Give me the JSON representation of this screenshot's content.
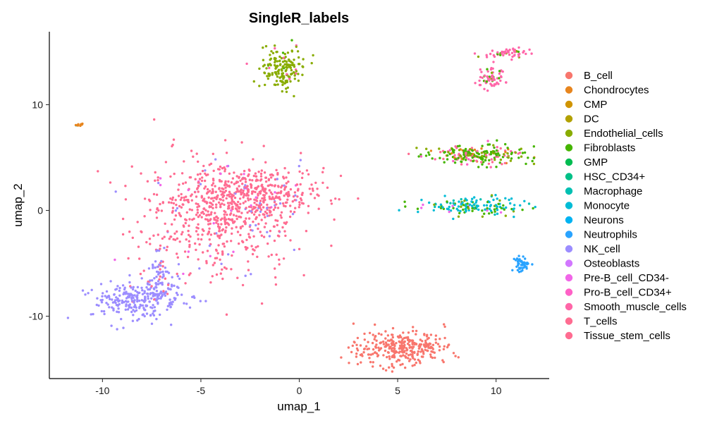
{
  "chart_data": {
    "type": "scatter",
    "title": "SingleR_labels",
    "xlabel": "umap_1",
    "ylabel": "umap_2",
    "xlim": [
      -12.7,
      12.7
    ],
    "ylim": [
      -15.9,
      16.9
    ],
    "xticks": [
      -10,
      -5,
      0,
      5,
      10
    ],
    "yticks": [
      -10,
      0,
      10
    ],
    "xtick_labels": [
      "-10",
      "-5",
      "0",
      "5",
      "10"
    ],
    "ytick_labels": [
      "-10",
      "0",
      "10"
    ],
    "legend_position": "right",
    "legend": [
      {
        "name": "B_cell",
        "color": "#F8766D"
      },
      {
        "name": "Chondrocytes",
        "color": "#E7851E"
      },
      {
        "name": "CMP",
        "color": "#D09400"
      },
      {
        "name": "DC",
        "color": "#B2A100"
      },
      {
        "name": "Endothelial_cells",
        "color": "#89AC00"
      },
      {
        "name": "Fibroblasts",
        "color": "#45B500"
      },
      {
        "name": "GMP",
        "color": "#00BC51"
      },
      {
        "name": "HSC_CD34+",
        "color": "#00C087"
      },
      {
        "name": "Macrophage",
        "color": "#00C0B2"
      },
      {
        "name": "Monocyte",
        "color": "#00BCD6"
      },
      {
        "name": "Neurons",
        "color": "#00B3F2"
      },
      {
        "name": "Neutrophils",
        "color": "#29A3FF"
      },
      {
        "name": "NK_cell",
        "color": "#9C8DFF"
      },
      {
        "name": "Osteoblasts",
        "color": "#D277FF"
      },
      {
        "name": "Pre-B_cell_CD34-",
        "color": "#F166E8"
      },
      {
        "name": "Pro-B_cell_CD34+",
        "color": "#FF61C7"
      },
      {
        "name": "Smooth_muscle_cells",
        "color": "#FF66A8"
      },
      {
        "name": "T_cells",
        "color": "#FF6C91"
      },
      {
        "name": "Tissue_stem_cells",
        "color": "#FF6C91"
      }
    ],
    "clusters": [
      {
        "label": "T_cells main cluster",
        "cx": -4.2,
        "cy": -1.0,
        "sx": 2.1,
        "sy": 3.2,
        "n": 900,
        "shape": "blob",
        "composition": {
          "T_cells": 0.93,
          "NK_cell": 0.05,
          "Pre-B_cell_CD34-": 0.02
        }
      },
      {
        "label": "NK cluster",
        "cx": -8.2,
        "cy": -8.5,
        "sx": 1.2,
        "sy": 0.9,
        "n": 260,
        "composition": {
          "NK_cell": 1.0
        }
      },
      {
        "label": "NK tail",
        "cx": -7.1,
        "cy": -6.3,
        "sx": 0.25,
        "sy": 1.3,
        "n": 60,
        "composition": {
          "NK_cell": 0.85,
          "T_cells": 0.15
        }
      },
      {
        "label": "B_cell cluster",
        "cx": 5.2,
        "cy": -13.0,
        "sx": 1.2,
        "sy": 0.8,
        "n": 320,
        "composition": {
          "B_cell": 1.0
        }
      },
      {
        "label": "Endothelial cluster",
        "cx": -0.9,
        "cy": 13.4,
        "sx": 0.55,
        "sy": 1.0,
        "n": 170,
        "composition": {
          "Endothelial_cells": 0.9,
          "Smooth_muscle_cells": 0.06,
          "Fibroblasts": 0.04
        }
      },
      {
        "label": "Fibroblast band",
        "cx": 9.0,
        "cy": 5.2,
        "sx": 1.4,
        "sy": 0.45,
        "n": 230,
        "composition": {
          "Fibroblasts": 0.5,
          "Endothelial_cells": 0.18,
          "Smooth_muscle_cells": 0.14,
          "Tissue_stem_cells": 0.08,
          "Chondrocytes": 0.06,
          "Pro-B_cell_CD34+": 0.04
        }
      },
      {
        "label": "Monocyte band",
        "cx": 8.8,
        "cy": 0.4,
        "sx": 1.2,
        "sy": 0.45,
        "n": 150,
        "composition": {
          "Monocyte": 0.55,
          "Fibroblasts": 0.2,
          "Macrophage": 0.12,
          "Endothelial_cells": 0.08,
          "Pre-B_cell_CD34-": 0.05
        }
      },
      {
        "label": "Smooth muscle upper",
        "cx": 10.6,
        "cy": 14.8,
        "sx": 0.6,
        "sy": 0.25,
        "n": 55,
        "composition": {
          "Smooth_muscle_cells": 0.85,
          "Fibroblasts": 0.1,
          "Endothelial_cells": 0.05
        }
      },
      {
        "label": "Smooth muscle lower",
        "cx": 9.8,
        "cy": 12.5,
        "sx": 0.35,
        "sy": 0.45,
        "n": 60,
        "composition": {
          "Smooth_muscle_cells": 0.8,
          "Fibroblasts": 0.12,
          "Endothelial_cells": 0.08
        }
      },
      {
        "label": "Neutrophil cluster",
        "cx": 11.3,
        "cy": -5.1,
        "sx": 0.18,
        "sy": 0.35,
        "n": 50,
        "composition": {
          "Neutrophils": 1.0
        }
      },
      {
        "label": "Small orange cluster",
        "cx": -11.2,
        "cy": 8.1,
        "sx": 0.1,
        "sy": 0.08,
        "n": 10,
        "composition": {
          "Chondrocytes": 0.7,
          "Monocyte": 0.3
        }
      }
    ]
  }
}
